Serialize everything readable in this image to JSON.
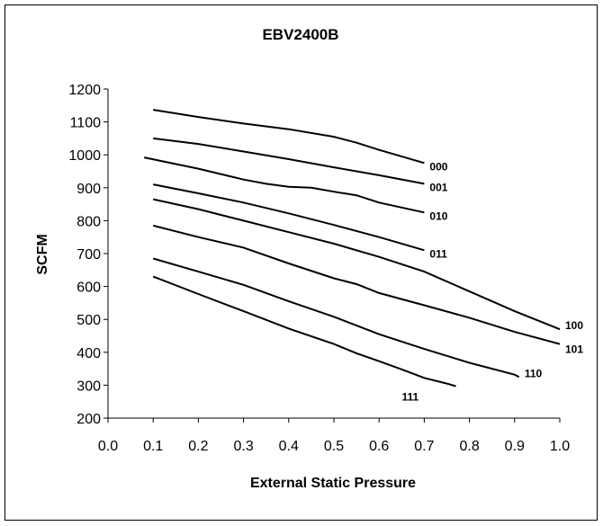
{
  "chart_data": {
    "type": "line",
    "title": "EBV2400B",
    "xlabel": "External Static Pressure",
    "ylabel": "SCFM",
    "xlim": [
      0.0,
      1.0
    ],
    "ylim": [
      200,
      1200
    ],
    "x_ticks": [
      "0.0",
      "0.1",
      "0.2",
      "0.3",
      "0.4",
      "0.5",
      "0.6",
      "0.7",
      "0.8",
      "0.9",
      "1.0"
    ],
    "y_ticks": [
      "200",
      "300",
      "400",
      "500",
      "600",
      "700",
      "800",
      "900",
      "1000",
      "1100",
      "1200"
    ],
    "grid": false,
    "legend": "none",
    "series": [
      {
        "name": "000",
        "x": [
          0.1,
          0.2,
          0.3,
          0.4,
          0.5,
          0.55,
          0.6,
          0.7
        ],
        "y": [
          1137,
          1115,
          1095,
          1078,
          1055,
          1037,
          1015,
          975
        ]
      },
      {
        "name": "001",
        "x": [
          0.1,
          0.2,
          0.3,
          0.4,
          0.5,
          0.6,
          0.7
        ],
        "y": [
          1050,
          1033,
          1010,
          987,
          962,
          938,
          912
        ]
      },
      {
        "name": "010",
        "x": [
          0.08,
          0.2,
          0.3,
          0.35,
          0.4,
          0.45,
          0.5,
          0.55,
          0.6,
          0.7
        ],
        "y": [
          992,
          958,
          925,
          912,
          903,
          900,
          888,
          877,
          855,
          825
        ]
      },
      {
        "name": "011",
        "x": [
          0.1,
          0.2,
          0.3,
          0.4,
          0.5,
          0.6,
          0.7
        ],
        "y": [
          910,
          883,
          855,
          822,
          787,
          750,
          710
        ]
      },
      {
        "name": "100",
        "x": [
          0.1,
          0.2,
          0.3,
          0.4,
          0.5,
          0.6,
          0.7,
          0.8,
          0.9,
          1.0
        ],
        "y": [
          865,
          835,
          800,
          765,
          730,
          690,
          645,
          585,
          525,
          470
        ]
      },
      {
        "name": "101",
        "x": [
          0.1,
          0.2,
          0.3,
          0.4,
          0.5,
          0.55,
          0.6,
          0.7,
          0.8,
          0.9,
          1.0
        ],
        "y": [
          785,
          750,
          718,
          670,
          625,
          607,
          580,
          543,
          505,
          462,
          425
        ]
      },
      {
        "name": "110",
        "x": [
          0.1,
          0.2,
          0.3,
          0.4,
          0.5,
          0.6,
          0.7,
          0.8,
          0.9,
          0.91
        ],
        "y": [
          685,
          645,
          605,
          555,
          508,
          455,
          410,
          368,
          332,
          325
        ]
      },
      {
        "name": "111",
        "x": [
          0.1,
          0.2,
          0.3,
          0.4,
          0.5,
          0.55,
          0.6,
          0.65,
          0.7,
          0.75,
          0.77
        ],
        "y": [
          630,
          577,
          525,
          472,
          425,
          397,
          373,
          348,
          322,
          305,
          297
        ]
      }
    ]
  }
}
